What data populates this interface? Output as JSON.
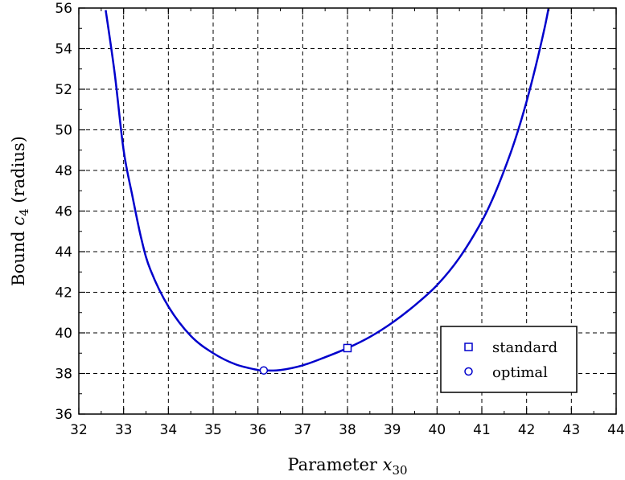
{
  "chart_data": {
    "type": "line",
    "xlabel": {
      "main": "Parameter ",
      "var": "x",
      "sub": "30"
    },
    "ylabel": {
      "main": "Bound ",
      "var": "c",
      "sub": "4",
      "suffix": " (radius)"
    },
    "xlim": [
      32,
      44
    ],
    "ylim": [
      36,
      56
    ],
    "xticks": [
      32,
      33,
      34,
      35,
      36,
      37,
      38,
      39,
      40,
      41,
      42,
      43,
      44
    ],
    "yticks": [
      36,
      38,
      40,
      42,
      44,
      46,
      48,
      50,
      52,
      54,
      56
    ],
    "grid": true,
    "line_color": "#0000cc",
    "series": [
      {
        "x": [
          32.6,
          32.8,
          33.0,
          33.2,
          33.4,
          33.6,
          34.0,
          34.5,
          35.0,
          35.5,
          36.0,
          36.13,
          36.5,
          37.0,
          37.5,
          38.0,
          38.5,
          39.0,
          39.5,
          40.0,
          40.5,
          41.0,
          41.3,
          41.6,
          41.8,
          42.0,
          42.2,
          42.4,
          42.5
        ],
        "y": [
          55.9,
          52.8,
          49.0,
          46.7,
          44.6,
          43.1,
          41.3,
          39.85,
          39.0,
          38.45,
          38.17,
          38.15,
          38.17,
          38.4,
          38.8,
          39.25,
          39.8,
          40.5,
          41.35,
          42.35,
          43.7,
          45.5,
          46.9,
          48.6,
          49.9,
          51.4,
          53.1,
          55.0,
          56.1
        ]
      }
    ],
    "markers": [
      {
        "name": "standard",
        "shape": "square",
        "x": 38.0,
        "y": 39.25
      },
      {
        "name": "optimal",
        "shape": "circle",
        "x": 36.13,
        "y": 38.15
      }
    ],
    "legend": {
      "position": "bottom-right",
      "entries": [
        {
          "label": "standard",
          "shape": "square"
        },
        {
          "label": "optimal",
          "shape": "circle"
        }
      ]
    }
  }
}
